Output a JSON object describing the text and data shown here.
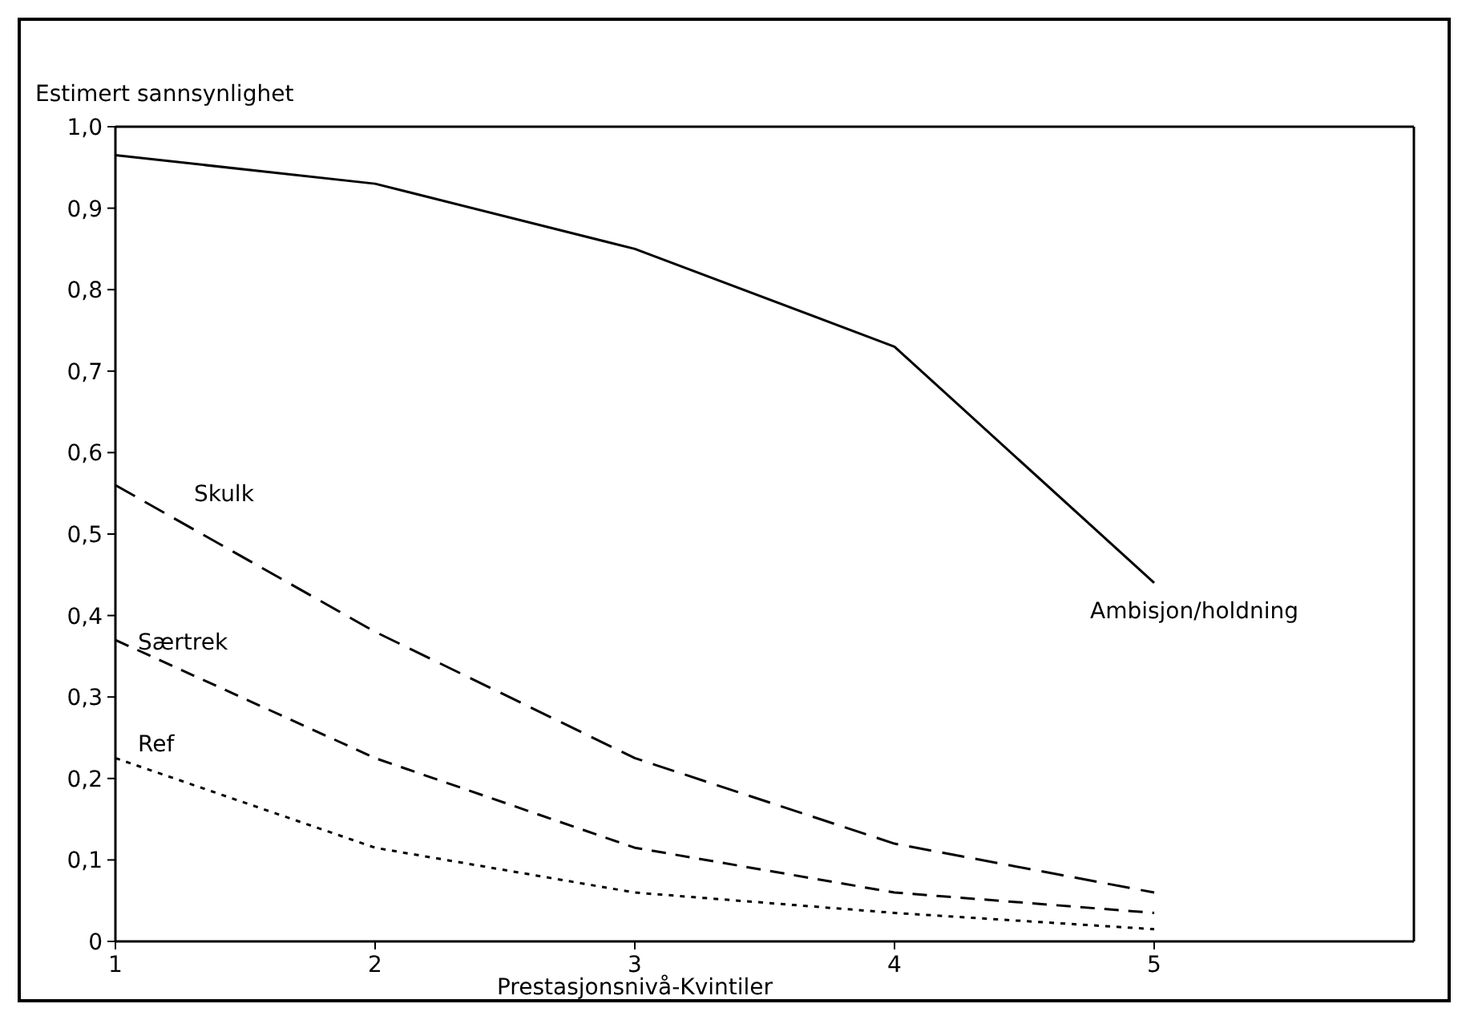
{
  "chart_data": {
    "type": "line",
    "xlabel": "Prestasjonsnivå-Kvintiler",
    "ylabel": "Estimert sannsynlighet",
    "x": [
      1,
      2,
      3,
      4,
      5
    ],
    "xlim": [
      1,
      6
    ],
    "xticks": [
      1,
      2,
      3,
      4,
      5
    ],
    "ylim": [
      0,
      1
    ],
    "yticks": [
      0,
      {
        "value": 0.1,
        "label": "0,1"
      },
      {
        "value": 0.2,
        "label": "0,2"
      },
      {
        "value": 0.3,
        "label": "0,3"
      },
      {
        "value": 0.4,
        "label": "0,4"
      },
      {
        "value": 0.5,
        "label": "0,5"
      },
      {
        "value": 0.6,
        "label": "0,6"
      },
      {
        "value": 0.7,
        "label": "0,7"
      },
      {
        "value": 0.8,
        "label": "0,8"
      },
      {
        "value": 0.9,
        "label": "0,9"
      },
      {
        "value": 1,
        "label": "1,0"
      }
    ],
    "grid": false,
    "marker": "none",
    "series": [
      {
        "name": "Ambisjon/holdning",
        "color": "#000000",
        "line_style": "solid",
        "values": [
          0.965,
          0.93,
          0.85,
          0.73,
          0.44
        ]
      },
      {
        "name": "Skulk",
        "color": "#000000",
        "line_style": "dashed",
        "values": [
          0.56,
          0.38,
          0.225,
          0.12,
          0.06
        ]
      },
      {
        "name": "Særtrek",
        "color": "#000000",
        "line_style": "dashed",
        "values": [
          0.37,
          0.225,
          0.115,
          0.06,
          0.035
        ]
      },
      {
        "name": "Ref",
        "color": "#000000",
        "line_style": "dotted",
        "values": [
          0.225,
          0.115,
          0.06,
          0.035,
          0.015
        ]
      }
    ]
  }
}
